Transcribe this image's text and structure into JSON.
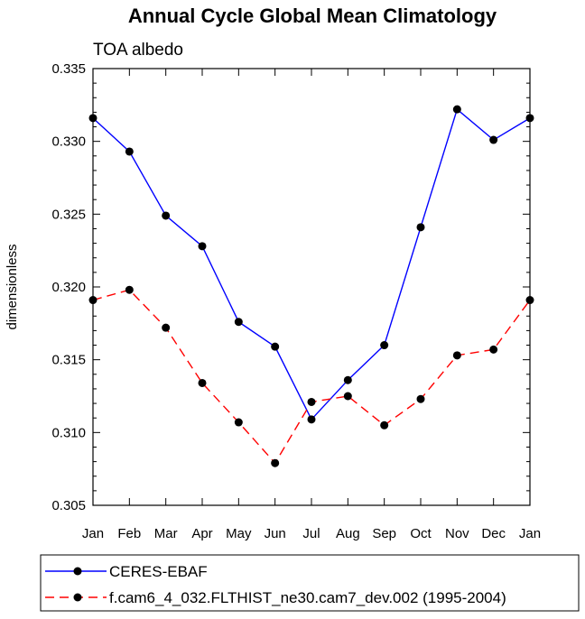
{
  "chart_data": {
    "type": "line",
    "title": "Annual Cycle Global Mean Climatology",
    "subtitle": "TOA albedo",
    "xlabel": "",
    "ylabel": "dimensionless",
    "categories": [
      "Jan",
      "Feb",
      "Mar",
      "Apr",
      "May",
      "Jun",
      "Jul",
      "Aug",
      "Sep",
      "Oct",
      "Nov",
      "Dec",
      "Jan"
    ],
    "ylim": [
      0.305,
      0.335
    ],
    "yticks": [
      "0.305",
      "0.310",
      "0.315",
      "0.320",
      "0.325",
      "0.330",
      "0.335"
    ],
    "ytick_values": [
      0.305,
      0.31,
      0.315,
      0.32,
      0.325,
      0.33,
      0.335
    ],
    "legend_position": "bottom",
    "series": [
      {
        "name": "CERES-EBAF",
        "color": "#0000ff",
        "dash": "solid",
        "values": [
          0.3316,
          0.3293,
          0.3249,
          0.3228,
          0.3176,
          0.3159,
          0.3109,
          0.3136,
          0.316,
          0.3241,
          0.3322,
          0.3301,
          0.3316
        ]
      },
      {
        "name": "f.cam6_4_032.FLTHIST_ne30.cam7_dev.002 (1995-2004)",
        "color": "#ff0000",
        "dash": "dashed",
        "values": [
          0.3191,
          0.3198,
          0.3172,
          0.3134,
          0.3107,
          0.3079,
          0.3121,
          0.3125,
          0.3105,
          0.3123,
          0.3153,
          0.3157,
          0.3191
        ]
      }
    ]
  }
}
